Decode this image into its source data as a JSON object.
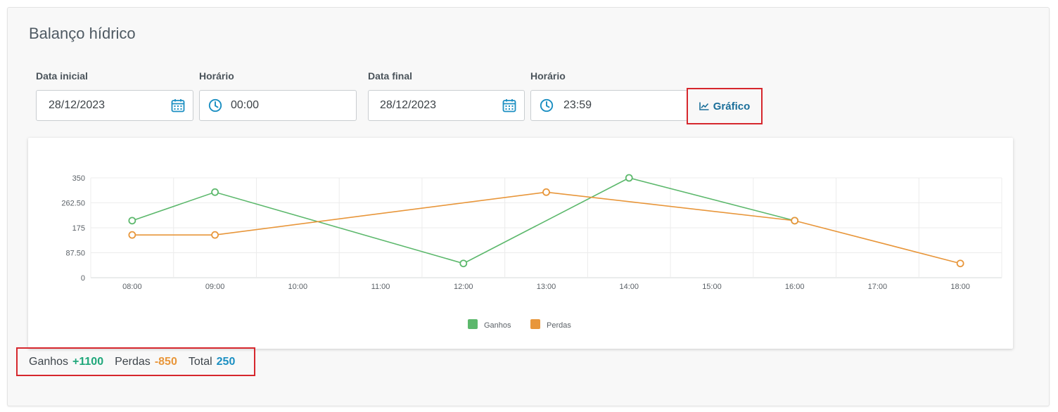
{
  "page": {
    "title": "Balanço hídrico"
  },
  "filters": {
    "start_date_label": "Data inicial",
    "start_date_value": "28/12/2023",
    "start_time_label": "Horário",
    "start_time_value": "00:00",
    "end_date_label": "Data final",
    "end_date_value": "28/12/2023",
    "end_time_label": "Horário",
    "end_time_value": "23:59",
    "chart_button_label": "Gráfico"
  },
  "summary": {
    "gains_label": "Ganhos",
    "gains_value": "+1100",
    "losses_label": "Perdas",
    "losses_value": "-850",
    "total_label": "Total",
    "total_value": "250"
  },
  "colors": {
    "gains": "#5cb86c",
    "losses": "#e8963a",
    "accent": "#1b8fc2",
    "highlight": "#d6272d"
  },
  "icons": {
    "date": "calendar-icon",
    "time": "clock-icon",
    "chart": "chart-line-icon"
  },
  "chart_data": {
    "type": "line",
    "x": [
      "08:00",
      "09:00",
      "10:00",
      "11:00",
      "12:00",
      "13:00",
      "14:00",
      "15:00",
      "16:00",
      "17:00",
      "18:00"
    ],
    "yticks": [
      "0",
      "87.50",
      "175",
      "262.50",
      "350"
    ],
    "ylim": [
      0,
      350
    ],
    "grid": true,
    "legend": "bottom",
    "series": [
      {
        "name": "Ganhos",
        "color": "#5cb86c",
        "points": [
          [
            "08:00",
            200
          ],
          [
            "09:00",
            300
          ],
          [
            "12:00",
            50
          ],
          [
            "14:00",
            350
          ],
          [
            "16:00",
            200
          ]
        ]
      },
      {
        "name": "Perdas",
        "color": "#e8963a",
        "points": [
          [
            "08:00",
            150
          ],
          [
            "09:00",
            150
          ],
          [
            "13:00",
            300
          ],
          [
            "16:00",
            200
          ],
          [
            "18:00",
            50
          ]
        ]
      }
    ]
  }
}
